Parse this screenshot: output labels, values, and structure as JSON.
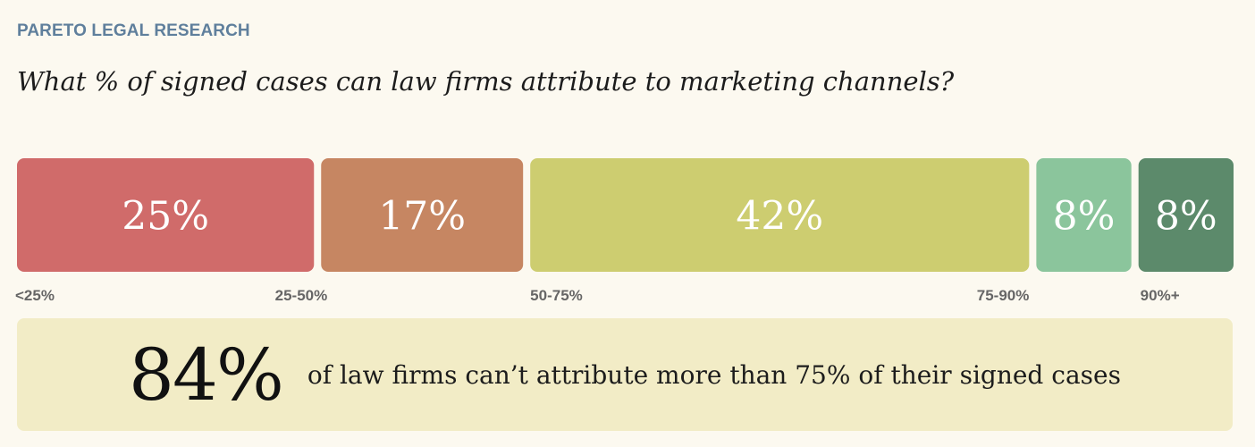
{
  "header": {
    "brand": "PARETO LEGAL RESEARCH",
    "title": "What % of signed cases can law firms attribute to marketing channels?"
  },
  "chart_data": {
    "type": "bar",
    "orientation": "horizontal-stacked",
    "categories": [
      "<25%",
      "25-50%",
      "50-75%",
      "75-90%",
      "90%+"
    ],
    "values": [
      25,
      17,
      42,
      8,
      8
    ],
    "data_labels": [
      "25%",
      "17%",
      "42%",
      "8%",
      "8%"
    ],
    "colors": [
      "#d06b6a",
      "#c68662",
      "#cdcd70",
      "#8bc59c",
      "#5c8a6b"
    ],
    "xlabel": "",
    "ylabel": ""
  },
  "callout": {
    "stat": "84%",
    "text": "of law firms can’t attribute more than 75% of their signed cases"
  }
}
